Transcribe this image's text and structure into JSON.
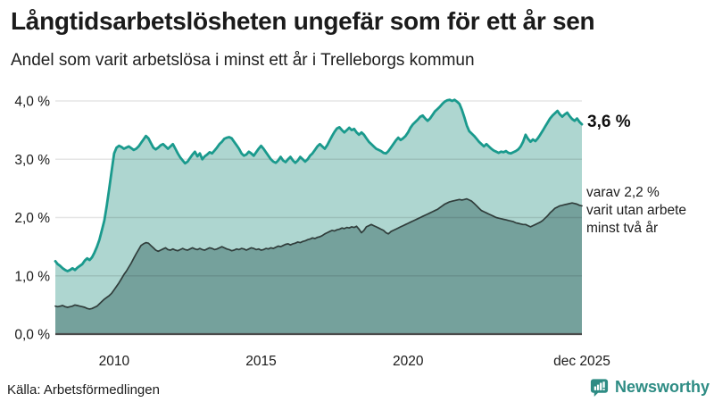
{
  "header": {
    "title": "Långtidsarbetslösheten ungefär som för ett år sen",
    "subtitle": "Andel som varit arbetslösa i minst ett år i Trelleborgs kommun"
  },
  "footer": {
    "source": "Källa: Arbetsförmedlingen"
  },
  "branding": {
    "name": "Newsworthy",
    "color": "#2e8c84"
  },
  "chart_data": {
    "type": "area",
    "title": "Andel som varit arbetslösa i minst ett år i Trelleborgs kommun",
    "unit": "%",
    "x_unit": "month",
    "x_range": [
      "2008-01",
      "2025-12"
    ],
    "ylim": [
      0,
      4.0
    ],
    "grid": "horizontal",
    "y_ticks": [
      {
        "value": 0.0,
        "label": "0,0 %"
      },
      {
        "value": 1.0,
        "label": "1,0 %"
      },
      {
        "value": 2.0,
        "label": "2,0 %"
      },
      {
        "value": 3.0,
        "label": "3,0 %"
      },
      {
        "value": 4.0,
        "label": "4,0 %"
      }
    ],
    "x_ticks": [
      {
        "index": 24,
        "label": "2010"
      },
      {
        "index": 84,
        "label": "2015"
      },
      {
        "index": 144,
        "label": "2020"
      },
      {
        "index": 215,
        "label": "dec 2025"
      }
    ],
    "series": [
      {
        "name": "Arbetslösa minst ett år",
        "line_color": "#1a9a8d",
        "fill_color": "#aed6d0",
        "last_value_label": "3,6 %",
        "values": [
          1.25,
          1.2,
          1.17,
          1.13,
          1.1,
          1.08,
          1.1,
          1.13,
          1.1,
          1.14,
          1.17,
          1.2,
          1.26,
          1.3,
          1.27,
          1.32,
          1.4,
          1.5,
          1.62,
          1.78,
          1.95,
          2.2,
          2.5,
          2.8,
          3.1,
          3.2,
          3.23,
          3.21,
          3.18,
          3.2,
          3.22,
          3.19,
          3.16,
          3.18,
          3.22,
          3.28,
          3.34,
          3.4,
          3.36,
          3.28,
          3.2,
          3.17,
          3.2,
          3.24,
          3.26,
          3.22,
          3.18,
          3.22,
          3.26,
          3.18,
          3.1,
          3.03,
          2.98,
          2.93,
          2.96,
          3.02,
          3.08,
          3.13,
          3.05,
          3.1,
          3.0,
          3.05,
          3.08,
          3.12,
          3.1,
          3.15,
          3.2,
          3.26,
          3.3,
          3.35,
          3.37,
          3.38,
          3.36,
          3.3,
          3.24,
          3.18,
          3.1,
          3.06,
          3.08,
          3.13,
          3.1,
          3.06,
          3.12,
          3.18,
          3.23,
          3.18,
          3.12,
          3.06,
          3.0,
          2.96,
          2.94,
          2.98,
          3.04,
          2.98,
          2.95,
          3.0,
          3.04,
          2.98,
          2.94,
          2.98,
          3.04,
          3.0,
          2.96,
          3.0,
          3.06,
          3.1,
          3.16,
          3.22,
          3.26,
          3.22,
          3.18,
          3.24,
          3.32,
          3.4,
          3.47,
          3.53,
          3.55,
          3.5,
          3.46,
          3.5,
          3.54,
          3.5,
          3.52,
          3.46,
          3.42,
          3.46,
          3.42,
          3.36,
          3.3,
          3.26,
          3.22,
          3.18,
          3.16,
          3.14,
          3.11,
          3.1,
          3.14,
          3.2,
          3.26,
          3.32,
          3.37,
          3.33,
          3.36,
          3.4,
          3.46,
          3.54,
          3.6,
          3.64,
          3.68,
          3.73,
          3.75,
          3.7,
          3.66,
          3.7,
          3.76,
          3.82,
          3.86,
          3.9,
          3.95,
          3.99,
          4.01,
          4.02,
          4.0,
          4.02,
          3.99,
          3.95,
          3.85,
          3.72,
          3.58,
          3.48,
          3.44,
          3.4,
          3.35,
          3.3,
          3.26,
          3.22,
          3.26,
          3.22,
          3.18,
          3.15,
          3.13,
          3.11,
          3.13,
          3.12,
          3.14,
          3.11,
          3.1,
          3.12,
          3.14,
          3.17,
          3.22,
          3.3,
          3.42,
          3.35,
          3.3,
          3.34,
          3.31,
          3.36,
          3.42,
          3.49,
          3.56,
          3.63,
          3.7,
          3.75,
          3.79,
          3.83,
          3.77,
          3.73,
          3.77,
          3.8,
          3.74,
          3.69,
          3.66,
          3.7,
          3.64,
          3.6
        ]
      },
      {
        "name": "Arbetslösa minst två år",
        "line_color": "#303d3b",
        "fill_color": "#75a19c",
        "last_value_label": "2,2 %",
        "values": [
          0.48,
          0.47,
          0.48,
          0.49,
          0.47,
          0.46,
          0.47,
          0.48,
          0.5,
          0.49,
          0.48,
          0.47,
          0.46,
          0.44,
          0.43,
          0.44,
          0.46,
          0.48,
          0.52,
          0.56,
          0.6,
          0.63,
          0.66,
          0.7,
          0.76,
          0.82,
          0.88,
          0.95,
          1.02,
          1.08,
          1.15,
          1.22,
          1.3,
          1.38,
          1.45,
          1.52,
          1.55,
          1.57,
          1.56,
          1.52,
          1.48,
          1.44,
          1.42,
          1.44,
          1.46,
          1.48,
          1.45,
          1.44,
          1.46,
          1.44,
          1.43,
          1.45,
          1.47,
          1.45,
          1.44,
          1.46,
          1.48,
          1.46,
          1.45,
          1.47,
          1.45,
          1.44,
          1.46,
          1.48,
          1.47,
          1.45,
          1.46,
          1.48,
          1.5,
          1.48,
          1.46,
          1.45,
          1.43,
          1.44,
          1.46,
          1.45,
          1.47,
          1.46,
          1.44,
          1.46,
          1.48,
          1.47,
          1.45,
          1.46,
          1.44,
          1.45,
          1.47,
          1.46,
          1.48,
          1.47,
          1.49,
          1.51,
          1.5,
          1.52,
          1.54,
          1.55,
          1.53,
          1.55,
          1.56,
          1.58,
          1.57,
          1.59,
          1.6,
          1.62,
          1.63,
          1.65,
          1.64,
          1.66,
          1.67,
          1.69,
          1.72,
          1.74,
          1.76,
          1.78,
          1.77,
          1.79,
          1.8,
          1.82,
          1.81,
          1.83,
          1.82,
          1.84,
          1.83,
          1.85,
          1.8,
          1.74,
          1.78,
          1.84,
          1.86,
          1.88,
          1.86,
          1.84,
          1.82,
          1.8,
          1.78,
          1.74,
          1.72,
          1.76,
          1.78,
          1.8,
          1.82,
          1.84,
          1.86,
          1.88,
          1.9,
          1.92,
          1.94,
          1.96,
          1.98,
          2.0,
          2.02,
          2.04,
          2.06,
          2.08,
          2.1,
          2.12,
          2.14,
          2.17,
          2.2,
          2.23,
          2.25,
          2.27,
          2.28,
          2.29,
          2.3,
          2.31,
          2.3,
          2.31,
          2.32,
          2.3,
          2.28,
          2.24,
          2.2,
          2.16,
          2.12,
          2.1,
          2.08,
          2.06,
          2.04,
          2.02,
          2.0,
          1.99,
          1.98,
          1.97,
          1.96,
          1.95,
          1.94,
          1.93,
          1.91,
          1.9,
          1.89,
          1.88,
          1.88,
          1.86,
          1.84,
          1.86,
          1.88,
          1.9,
          1.92,
          1.95,
          1.99,
          2.03,
          2.08,
          2.12,
          2.16,
          2.18,
          2.2,
          2.21,
          2.22,
          2.23,
          2.24,
          2.25,
          2.24,
          2.23,
          2.21,
          2.2
        ]
      }
    ],
    "annotations": [
      {
        "text": "3,6 %"
      },
      {
        "lines": [
          "varav 2,2 %",
          "varit utan arbete",
          "minst två år"
        ]
      }
    ]
  }
}
